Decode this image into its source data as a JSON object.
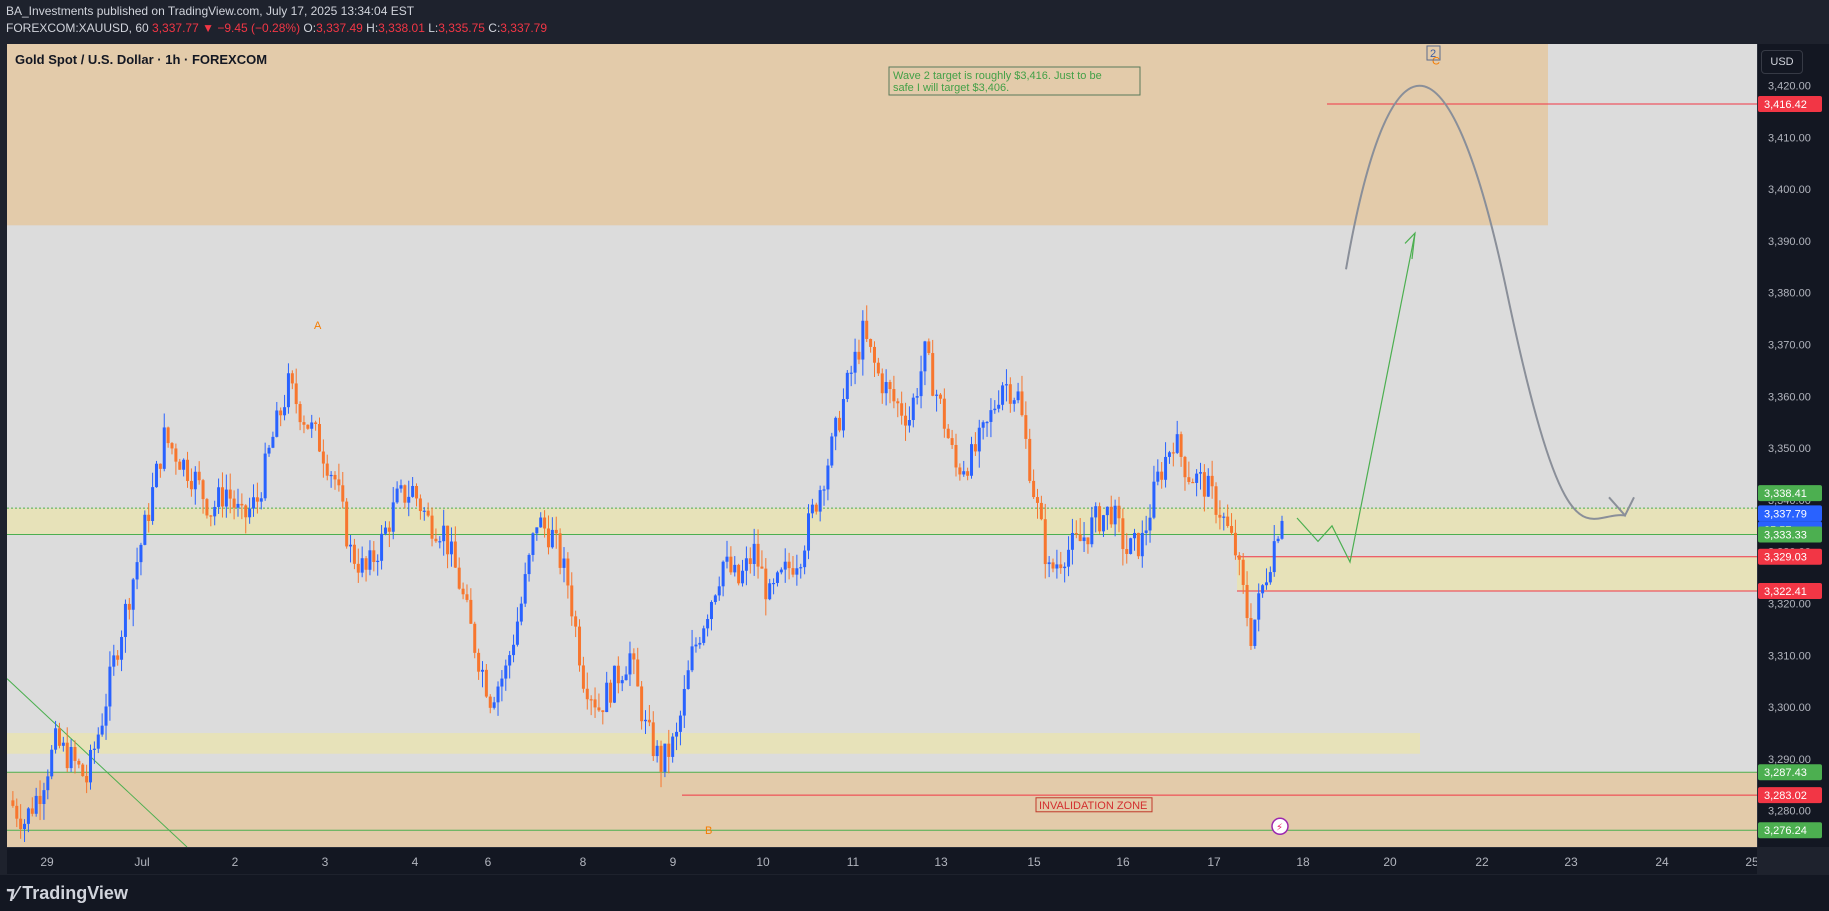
{
  "header": {
    "publisher": "BA_Investments",
    "published_text": "published on TradingView.com, July 17, 2025 13:34:04 EST",
    "symbol": "FOREXCOM:XAUUSD, 60",
    "last": "3,337.77",
    "change": "−9.45 (−0.28%)",
    "open_label": "O:",
    "open": "3,337.49",
    "high_label": "H:",
    "high": "3,338.01",
    "low_label": "L:",
    "low": "3,335.75",
    "close_label": "C:",
    "close": "3,337.79"
  },
  "chart": {
    "title": "Gold Spot / U.S. Dollar · 1h · FOREXCOM",
    "currency_button": "USD",
    "note_text_1": "Wave 2 target is roughly $3,416. Just to be",
    "note_text_2": "safe I will target $3,406.",
    "wave_label_2": "2",
    "wave_label_a": "A",
    "wave_label_b": "B",
    "wave_label_c": "C",
    "invalidation_label": "INVALIDATION ZONE"
  },
  "footer": {
    "logo_text": "TradingView"
  },
  "colors": {
    "up": "#2962ff",
    "down": "#f7762e",
    "zone_orange": "#e3c9a6",
    "zone_yellow": "#e7e1b6",
    "red_line": "#f23645",
    "green_line": "#4caf50",
    "curve": "#8a8f99"
  },
  "chart_data": {
    "type": "candlestick",
    "title": "Gold Spot / U.S. Dollar · 1h · FOREXCOM",
    "ylim": [
      3273,
      3428
    ],
    "y_ticks": [
      3280,
      3290,
      3300,
      3310,
      3320,
      3330,
      3340,
      3350,
      3360,
      3370,
      3380,
      3390,
      3400,
      3410,
      3420
    ],
    "x_ticks": [
      "29",
      "Jul",
      "2",
      "3",
      "4",
      "6",
      "8",
      "9",
      "10",
      "11",
      "13",
      "15",
      "16",
      "17",
      "18",
      "20",
      "22",
      "23",
      "24",
      "25"
    ],
    "price_badges": [
      {
        "value": "3,416.42",
        "color": "#f23645"
      },
      {
        "value": "3,338.41",
        "color": "#4caf50"
      },
      {
        "value": "3,337.79",
        "color": "#2962ff"
      },
      {
        "value": "25:57",
        "color": "#2962ff"
      },
      {
        "value": "3,333.33",
        "color": "#4caf50"
      },
      {
        "value": "3,329.03",
        "color": "#f23645"
      },
      {
        "value": "3,322.41",
        "color": "#f23645"
      },
      {
        "value": "3,287.43",
        "color": "#4caf50"
      },
      {
        "value": "3,283.02",
        "color": "#f23645"
      },
      {
        "value": "3,276.24",
        "color": "#4caf50"
      }
    ],
    "levels": [
      {
        "value": 3416.42,
        "color": "#f23645"
      },
      {
        "value": 3338.41,
        "color": "#4caf50"
      },
      {
        "value": 3333.33,
        "color": "#4caf50"
      },
      {
        "value": 3329.03,
        "color": "#f23645"
      },
      {
        "value": 3322.41,
        "color": "#f23645"
      },
      {
        "value": 3287.43,
        "color": "#4caf50"
      },
      {
        "value": 3283.02,
        "color": "#f23645"
      },
      {
        "value": 3276.24,
        "color": "#4caf50"
      }
    ],
    "zones": [
      {
        "name": "supply",
        "y_range": [
          3393,
          3428
        ]
      },
      {
        "name": "pivot",
        "y_range": [
          3333.3,
          3338.4
        ]
      },
      {
        "name": "target-box",
        "y_range": [
          3322.4,
          3329.0
        ]
      },
      {
        "name": "support",
        "y_range": [
          3291,
          3295
        ]
      },
      {
        "name": "invalidation",
        "y_range": [
          3273,
          3287.4
        ]
      }
    ],
    "path_closes": [
      3282,
      3278,
      3284,
      3293,
      3290,
      3286,
      3298,
      3312,
      3325,
      3338,
      3352,
      3348,
      3344,
      3338,
      3342,
      3336,
      3340,
      3352,
      3362,
      3356,
      3351,
      3344,
      3330,
      3326,
      3332,
      3340,
      3342,
      3336,
      3334,
      3324,
      3312,
      3302,
      3307,
      3320,
      3336,
      3333,
      3324,
      3306,
      3300,
      3305,
      3310,
      3296,
      3289,
      3294,
      3310,
      3319,
      3328,
      3324,
      3330,
      3321,
      3326,
      3330,
      3340,
      3350,
      3362,
      3372,
      3364,
      3359,
      3356,
      3368,
      3358,
      3346,
      3348,
      3354,
      3363,
      3360,
      3342,
      3326,
      3330,
      3332,
      3336,
      3338,
      3330,
      3332,
      3344,
      3352,
      3345,
      3343,
      3338,
      3330,
      3314,
      3326,
      3337.8
    ],
    "x_dates": [
      "29",
      "Jul",
      "2",
      "3",
      "4",
      "6",
      "8",
      "9",
      "10",
      "11",
      "13",
      "15",
      "16",
      "17",
      "18",
      "20",
      "22",
      "23",
      "24",
      "25"
    ]
  }
}
